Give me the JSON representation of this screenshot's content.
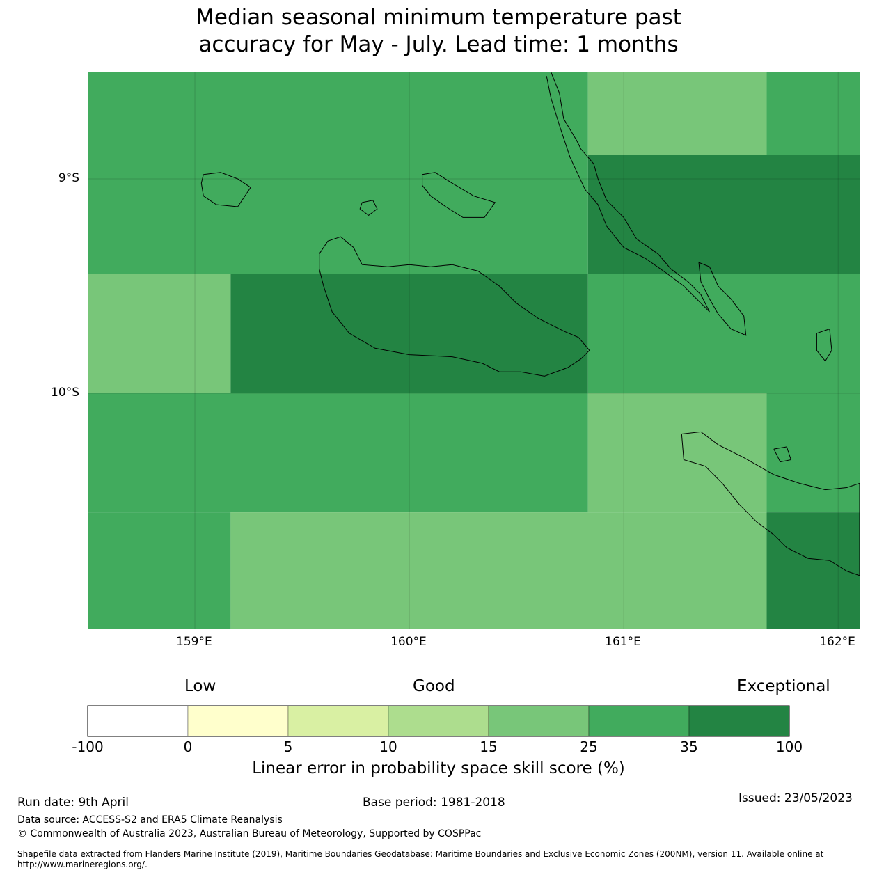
{
  "title": {
    "line1": "Median seasonal minimum temperature past",
    "line2": "accuracy for May - July. Lead time: 1 months"
  },
  "map": {
    "lon_range": [
      158.5,
      162.1
    ],
    "lat_range": [
      -8.5,
      -11.1
    ],
    "lon_ticks": [
      {
        "value": 159,
        "label": "159°E"
      },
      {
        "value": 160,
        "label": "160°E"
      },
      {
        "value": 161,
        "label": "161°E"
      },
      {
        "value": 162,
        "label": "162°E"
      }
    ],
    "lat_ticks": [
      {
        "value": -9,
        "label": "9°S"
      },
      {
        "value": -10,
        "label": "10°S"
      }
    ],
    "grid": true,
    "cell_lon_edges": [
      158.5,
      159.1667,
      160.8333,
      161.6667,
      162.1
    ],
    "cell_lat_edges": [
      -8.5,
      -8.8889,
      -9.4444,
      -10.0,
      -10.5556,
      -11.1
    ],
    "cells": [
      [
        {
          "lon": [
            158.5,
            160.8333
          ],
          "lat": [
            -8.5,
            -9.4444
          ],
          "class": 5
        },
        {
          "lon": [
            160.8333,
            161.6667
          ],
          "lat": [
            -8.5,
            -8.8889
          ],
          "class": 4
        },
        {
          "lon": [
            161.6667,
            162.1
          ],
          "lat": [
            -8.5,
            -8.8889
          ],
          "class": 5
        },
        {
          "lon": [
            160.8333,
            162.1
          ],
          "lat": [
            -8.8889,
            -9.4444
          ],
          "class": 6
        },
        {
          "lon": [
            158.5,
            159.1667
          ],
          "lat": [
            -9.4444,
            -10.0
          ],
          "class": 4
        },
        {
          "lon": [
            159.1667,
            160.8333
          ],
          "lat": [
            -9.4444,
            -10.0
          ],
          "class": 6
        },
        {
          "lon": [
            160.8333,
            162.1
          ],
          "lat": [
            -9.4444,
            -10.0
          ],
          "class": 5
        },
        {
          "lon": [
            158.5,
            160.8333
          ],
          "lat": [
            -10.0,
            -10.5556
          ],
          "class": 5
        },
        {
          "lon": [
            160.8333,
            161.6667
          ],
          "lat": [
            -10.0,
            -10.5556
          ],
          "class": 4
        },
        {
          "lon": [
            161.6667,
            162.1
          ],
          "lat": [
            -10.0,
            -10.5556
          ],
          "class": 5
        },
        {
          "lon": [
            158.5,
            159.1667
          ],
          "lat": [
            -10.5556,
            -11.1
          ],
          "class": 5
        },
        {
          "lon": [
            159.1667,
            161.6667
          ],
          "lat": [
            -10.5556,
            -11.1
          ],
          "class": 4
        },
        {
          "lon": [
            161.6667,
            162.1
          ],
          "lat": [
            -10.5556,
            -11.1
          ],
          "class": 6
        }
      ]
    ],
    "coastlines": [
      {
        "name": "guadalcanal",
        "points": [
          [
            159.58,
            -9.35
          ],
          [
            159.62,
            -9.29
          ],
          [
            159.68,
            -9.27
          ],
          [
            159.74,
            -9.32
          ],
          [
            159.78,
            -9.4
          ],
          [
            159.9,
            -9.41
          ],
          [
            160.0,
            -9.4
          ],
          [
            160.1,
            -9.41
          ],
          [
            160.2,
            -9.4
          ],
          [
            160.32,
            -9.43
          ],
          [
            160.42,
            -9.5
          ],
          [
            160.5,
            -9.58
          ],
          [
            160.6,
            -9.65
          ],
          [
            160.72,
            -9.71
          ],
          [
            160.79,
            -9.74
          ],
          [
            160.84,
            -9.8
          ],
          [
            160.8,
            -9.84
          ],
          [
            160.74,
            -9.88
          ],
          [
            160.63,
            -9.92
          ],
          [
            160.52,
            -9.9
          ],
          [
            160.42,
            -9.9
          ],
          [
            160.34,
            -9.86
          ],
          [
            160.2,
            -9.83
          ],
          [
            160.0,
            -9.82
          ],
          [
            159.84,
            -9.79
          ],
          [
            159.72,
            -9.72
          ],
          [
            159.64,
            -9.62
          ],
          [
            159.6,
            -9.5
          ],
          [
            159.58,
            -9.42
          ],
          [
            159.58,
            -9.35
          ]
        ]
      },
      {
        "name": "florida-islands",
        "points": [
          [
            160.06,
            -8.98
          ],
          [
            160.12,
            -8.97
          ],
          [
            160.2,
            -9.02
          ],
          [
            160.3,
            -9.08
          ],
          [
            160.4,
            -9.11
          ],
          [
            160.35,
            -9.18
          ],
          [
            160.25,
            -9.18
          ],
          [
            160.17,
            -9.13
          ],
          [
            160.1,
            -9.08
          ],
          [
            160.06,
            -9.03
          ],
          [
            160.06,
            -8.98
          ]
        ]
      },
      {
        "name": "savo",
        "points": [
          [
            159.78,
            -9.11
          ],
          [
            159.83,
            -9.1
          ],
          [
            159.85,
            -9.14
          ],
          [
            159.81,
            -9.17
          ],
          [
            159.77,
            -9.14
          ],
          [
            159.78,
            -9.11
          ]
        ]
      },
      {
        "name": "russell-islands",
        "points": [
          [
            159.04,
            -8.98
          ],
          [
            159.12,
            -8.97
          ],
          [
            159.2,
            -9.0
          ],
          [
            159.26,
            -9.04
          ],
          [
            159.2,
            -9.13
          ],
          [
            159.1,
            -9.12
          ],
          [
            159.04,
            -9.08
          ],
          [
            159.03,
            -9.02
          ],
          [
            159.04,
            -8.98
          ]
        ]
      },
      {
        "name": "malaita",
        "points": [
          [
            160.66,
            -8.5
          ],
          [
            160.7,
            -8.6
          ],
          [
            160.72,
            -8.72
          ],
          [
            160.78,
            -8.82
          ],
          [
            160.8,
            -8.86
          ],
          [
            160.86,
            -8.93
          ],
          [
            160.88,
            -9.0
          ],
          [
            160.92,
            -9.1
          ],
          [
            161.0,
            -9.18
          ],
          [
            161.06,
            -9.28
          ],
          [
            161.16,
            -9.35
          ],
          [
            161.22,
            -9.42
          ],
          [
            161.3,
            -9.48
          ],
          [
            161.36,
            -9.54
          ],
          [
            161.4,
            -9.62
          ],
          [
            161.35,
            -9.57
          ],
          [
            161.28,
            -9.5
          ],
          [
            161.2,
            -9.44
          ],
          [
            161.1,
            -9.37
          ],
          [
            161.0,
            -9.32
          ],
          [
            160.92,
            -9.22
          ],
          [
            160.88,
            -9.12
          ],
          [
            160.82,
            -9.05
          ],
          [
            160.75,
            -8.9
          ],
          [
            160.7,
            -8.75
          ],
          [
            160.66,
            -8.62
          ],
          [
            160.64,
            -8.52
          ]
        ]
      },
      {
        "name": "south-malaita",
        "points": [
          [
            161.35,
            -9.39
          ],
          [
            161.4,
            -9.41
          ],
          [
            161.44,
            -9.5
          ],
          [
            161.5,
            -9.56
          ],
          [
            161.56,
            -9.64
          ],
          [
            161.57,
            -9.73
          ],
          [
            161.5,
            -9.7
          ],
          [
            161.44,
            -9.63
          ],
          [
            161.4,
            -9.56
          ],
          [
            161.36,
            -9.48
          ],
          [
            161.35,
            -9.39
          ]
        ]
      },
      {
        "name": "makira",
        "points": [
          [
            161.27,
            -10.19
          ],
          [
            161.36,
            -10.18
          ],
          [
            161.44,
            -10.24
          ],
          [
            161.56,
            -10.3
          ],
          [
            161.7,
            -10.38
          ],
          [
            161.82,
            -10.42
          ],
          [
            161.94,
            -10.45
          ],
          [
            162.04,
            -10.44
          ],
          [
            162.1,
            -10.42
          ],
          [
            162.1,
            -10.85
          ],
          [
            162.04,
            -10.83
          ],
          [
            161.96,
            -10.78
          ],
          [
            161.86,
            -10.77
          ],
          [
            161.76,
            -10.72
          ],
          [
            161.7,
            -10.66
          ],
          [
            161.62,
            -10.6
          ],
          [
            161.54,
            -10.52
          ],
          [
            161.46,
            -10.42
          ],
          [
            161.38,
            -10.34
          ],
          [
            161.28,
            -10.31
          ],
          [
            161.27,
            -10.19
          ]
        ]
      },
      {
        "name": "ulawa-area",
        "points": [
          [
            161.9,
            -9.72
          ],
          [
            161.96,
            -9.7
          ],
          [
            161.97,
            -9.8
          ],
          [
            161.94,
            -9.85
          ],
          [
            161.9,
            -9.8
          ],
          [
            161.9,
            -9.72
          ]
        ]
      },
      {
        "name": "three-sisters",
        "points": [
          [
            161.7,
            -10.26
          ],
          [
            161.76,
            -10.25
          ],
          [
            161.78,
            -10.31
          ],
          [
            161.73,
            -10.32
          ],
          [
            161.7,
            -10.26
          ]
        ]
      }
    ]
  },
  "colorbar": {
    "category_labels": {
      "low": "Low",
      "good": "Good",
      "exceptional": "Exceptional"
    },
    "boundaries": [
      "-100",
      "0",
      "5",
      "10",
      "15",
      "25",
      "35",
      "100"
    ],
    "colors": [
      "#ffffff",
      "#ffffcc",
      "#d9f0a3",
      "#addd8e",
      "#78c679",
      "#41ab5d",
      "#238443"
    ],
    "title": "Linear error in probability space skill score (%)"
  },
  "footer": {
    "run_date": "Run date: 9th April",
    "base_period": "Base period: 1981-2018",
    "issued": "Issued: 23/05/2023",
    "data_source": "Data source: ACCESS-S2 and ERA5 Climate Reanalysis",
    "copyright": "© Commonwealth of Australia 2023, Australian Bureau of Meteorology, Supported by COSPPac",
    "shapefile_line1": "Shapefile data extracted from Flanders Marine Institute (2019), Maritime Boundaries Geodatabase: Maritime Boundaries and Exclusive Economic Zones (200NM), version 11. Available online at",
    "shapefile_line2": "http://www.marineregions.org/."
  }
}
